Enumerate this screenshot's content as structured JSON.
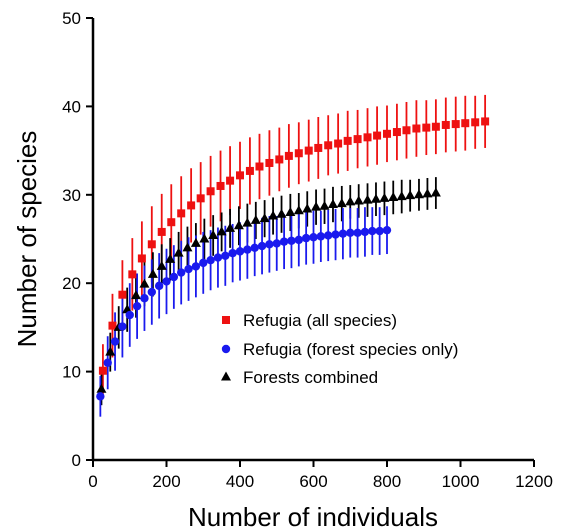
{
  "chart_data": {
    "type": "scatter",
    "title": "",
    "xlabel": "Number of individuals",
    "ylabel": "Number of species",
    "xlim": [
      0,
      1200
    ],
    "ylim": [
      0,
      50
    ],
    "x_ticks": [
      "0",
      "200",
      "400",
      "600",
      "800",
      "1000",
      "1200"
    ],
    "y_ticks": [
      "0",
      "10",
      "20",
      "30",
      "40",
      "50"
    ],
    "grid": false,
    "legend_position": "center-right",
    "series": [
      {
        "name": "Refugia (all species)",
        "color": "#ee1111",
        "marker": "square",
        "x": [
          27,
          53,
          80,
          107,
          133,
          160,
          187,
          213,
          240,
          267,
          293,
          320,
          347,
          373,
          400,
          427,
          453,
          480,
          507,
          533,
          560,
          587,
          613,
          640,
          667,
          693,
          720,
          747,
          773,
          800,
          827,
          853,
          880,
          907,
          933,
          960,
          987,
          1013,
          1040,
          1067
        ],
        "y": [
          10.1,
          15.2,
          18.7,
          21.0,
          22.8,
          24.4,
          25.8,
          26.9,
          27.9,
          28.8,
          29.6,
          30.4,
          31.0,
          31.6,
          32.2,
          32.7,
          33.2,
          33.6,
          34.0,
          34.4,
          34.7,
          35.0,
          35.3,
          35.6,
          35.8,
          36.1,
          36.3,
          36.5,
          36.7,
          36.9,
          37.1,
          37.3,
          37.5,
          37.6,
          37.7,
          37.9,
          38.0,
          38.1,
          38.2,
          38.3
        ],
        "error": [
          3.0,
          3.6,
          3.9,
          4.1,
          4.2,
          4.3,
          4.3,
          4.3,
          4.2,
          4.2,
          4.1,
          4.0,
          4.0,
          3.9,
          3.8,
          3.8,
          3.7,
          3.7,
          3.6,
          3.6,
          3.5,
          3.5,
          3.5,
          3.4,
          3.4,
          3.4,
          3.3,
          3.3,
          3.3,
          3.2,
          3.2,
          3.2,
          3.2,
          3.1,
          3.1,
          3.1,
          3.1,
          3.1,
          3.0,
          3.0
        ]
      },
      {
        "name": "Refugia (forest species only)",
        "color": "#1a1aee",
        "marker": "circle",
        "x": [
          20,
          40,
          60,
          80,
          100,
          120,
          140,
          160,
          180,
          200,
          220,
          240,
          260,
          280,
          300,
          320,
          340,
          360,
          380,
          400,
          420,
          440,
          460,
          480,
          500,
          520,
          540,
          560,
          580,
          600,
          620,
          640,
          660,
          680,
          700,
          720,
          740,
          760,
          780,
          800
        ],
        "y": [
          7.2,
          11.0,
          13.4,
          15.1,
          16.4,
          17.4,
          18.3,
          19.0,
          19.7,
          20.2,
          20.7,
          21.2,
          21.6,
          21.9,
          22.3,
          22.6,
          22.9,
          23.1,
          23.4,
          23.6,
          23.8,
          24.0,
          24.2,
          24.4,
          24.5,
          24.7,
          24.8,
          24.9,
          25.1,
          25.2,
          25.3,
          25.4,
          25.5,
          25.6,
          25.7,
          25.7,
          25.8,
          25.9,
          25.9,
          26.0
        ],
        "error": [
          2.3,
          3.0,
          3.3,
          3.5,
          3.6,
          3.7,
          3.7,
          3.7,
          3.7,
          3.7,
          3.6,
          3.6,
          3.6,
          3.5,
          3.5,
          3.4,
          3.4,
          3.4,
          3.3,
          3.3,
          3.3,
          3.2,
          3.2,
          3.2,
          3.1,
          3.1,
          3.1,
          3.0,
          3.0,
          3.0,
          2.9,
          2.9,
          2.9,
          2.9,
          2.8,
          2.8,
          2.8,
          2.7,
          2.7,
          2.7
        ]
      },
      {
        "name": "Forests combined",
        "color": "#000000",
        "marker": "triangle",
        "x": [
          23,
          47,
          70,
          93,
          117,
          140,
          163,
          187,
          210,
          233,
          257,
          280,
          303,
          327,
          350,
          373,
          397,
          420,
          443,
          467,
          490,
          513,
          537,
          560,
          583,
          607,
          630,
          653,
          677,
          700,
          723,
          747,
          770,
          793,
          817,
          840,
          863,
          887,
          910,
          933
        ],
        "y": [
          8.0,
          12.2,
          15.0,
          17.0,
          18.6,
          19.9,
          21.0,
          21.9,
          22.7,
          23.4,
          24.0,
          24.5,
          25.0,
          25.4,
          25.8,
          26.2,
          26.5,
          26.8,
          27.1,
          27.3,
          27.6,
          27.8,
          28.0,
          28.2,
          28.4,
          28.6,
          28.7,
          28.9,
          29.0,
          29.2,
          29.3,
          29.4,
          29.5,
          29.6,
          29.7,
          29.8,
          29.9,
          30.0,
          30.1,
          30.2
        ],
        "error": [
          1.8,
          2.2,
          2.4,
          2.5,
          2.5,
          2.5,
          2.5,
          2.5,
          2.4,
          2.4,
          2.4,
          2.3,
          2.3,
          2.3,
          2.2,
          2.2,
          2.2,
          2.2,
          2.1,
          2.1,
          2.1,
          2.1,
          2.1,
          2.0,
          2.0,
          2.0,
          2.0,
          2.0,
          2.0,
          1.9,
          1.9,
          1.9,
          1.9,
          1.9,
          1.9,
          1.9,
          1.8,
          1.8,
          1.8,
          1.8
        ]
      }
    ]
  }
}
